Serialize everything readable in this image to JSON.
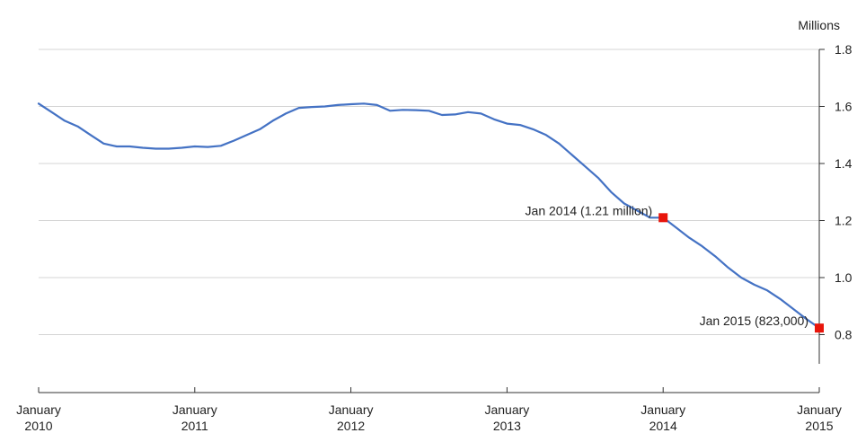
{
  "chart_data": {
    "type": "line",
    "title": "",
    "xlabel": "",
    "ylabel": "",
    "y_unit_label": "Millions",
    "ylim": [
      0.7,
      1.8
    ],
    "y_ticks": [
      0.8,
      1.0,
      1.2,
      1.4,
      1.6,
      1.8
    ],
    "y_tick_labels": [
      "0.8",
      "1.0",
      "1.2",
      "1.4",
      "1.6",
      "1.8"
    ],
    "x_ticks": [
      "2010-01",
      "2011-01",
      "2012-01",
      "2013-01",
      "2014-01",
      "2015-01"
    ],
    "x_tick_labels": [
      {
        "month": "January",
        "year": "2010"
      },
      {
        "month": "January",
        "year": "2011"
      },
      {
        "month": "January",
        "year": "2012"
      },
      {
        "month": "January",
        "year": "2013"
      },
      {
        "month": "January",
        "year": "2014"
      },
      {
        "month": "January",
        "year": "2015"
      }
    ],
    "grid": "horizontal",
    "y_axis_side": "right",
    "line_color": "#4472C4",
    "marker_color": "#E8150B",
    "series": [
      {
        "x": [
          "2010-01",
          "2010-02",
          "2010-03",
          "2010-04",
          "2010-05",
          "2010-06",
          "2010-07",
          "2010-08",
          "2010-09",
          "2010-10",
          "2010-11",
          "2010-12",
          "2011-01",
          "2011-02",
          "2011-03",
          "2011-04",
          "2011-05",
          "2011-06",
          "2011-07",
          "2011-08",
          "2011-09",
          "2011-10",
          "2011-11",
          "2011-12",
          "2012-01",
          "2012-02",
          "2012-03",
          "2012-04",
          "2012-05",
          "2012-06",
          "2012-07",
          "2012-08",
          "2012-09",
          "2012-10",
          "2012-11",
          "2012-12",
          "2013-01",
          "2013-02",
          "2013-03",
          "2013-04",
          "2013-05",
          "2013-06",
          "2013-07",
          "2013-08",
          "2013-09",
          "2013-10",
          "2013-11",
          "2013-12",
          "2014-01",
          "2014-02",
          "2014-03",
          "2014-04",
          "2014-05",
          "2014-06",
          "2014-07",
          "2014-08",
          "2014-09",
          "2014-10",
          "2014-11",
          "2014-12",
          "2015-01"
        ],
        "values": [
          1.61,
          1.58,
          1.55,
          1.53,
          1.5,
          1.47,
          1.46,
          1.46,
          1.455,
          1.452,
          1.452,
          1.455,
          1.46,
          1.458,
          1.462,
          1.48,
          1.5,
          1.52,
          1.55,
          1.575,
          1.595,
          1.598,
          1.6,
          1.605,
          1.608,
          1.61,
          1.605,
          1.585,
          1.588,
          1.587,
          1.585,
          1.57,
          1.572,
          1.58,
          1.575,
          1.555,
          1.54,
          1.535,
          1.52,
          1.5,
          1.47,
          1.43,
          1.39,
          1.35,
          1.3,
          1.26,
          1.235,
          1.21,
          1.21,
          1.175,
          1.14,
          1.11,
          1.075,
          1.035,
          1.0,
          0.975,
          0.955,
          0.925,
          0.89,
          0.855,
          0.823
        ]
      }
    ],
    "annotations": [
      {
        "x": "2014-01",
        "y": 1.21,
        "text": "Jan 2014 (1.21 million)"
      },
      {
        "x": "2015-01",
        "y": 0.823,
        "text": "Jan 2015 (823,000)"
      }
    ]
  }
}
